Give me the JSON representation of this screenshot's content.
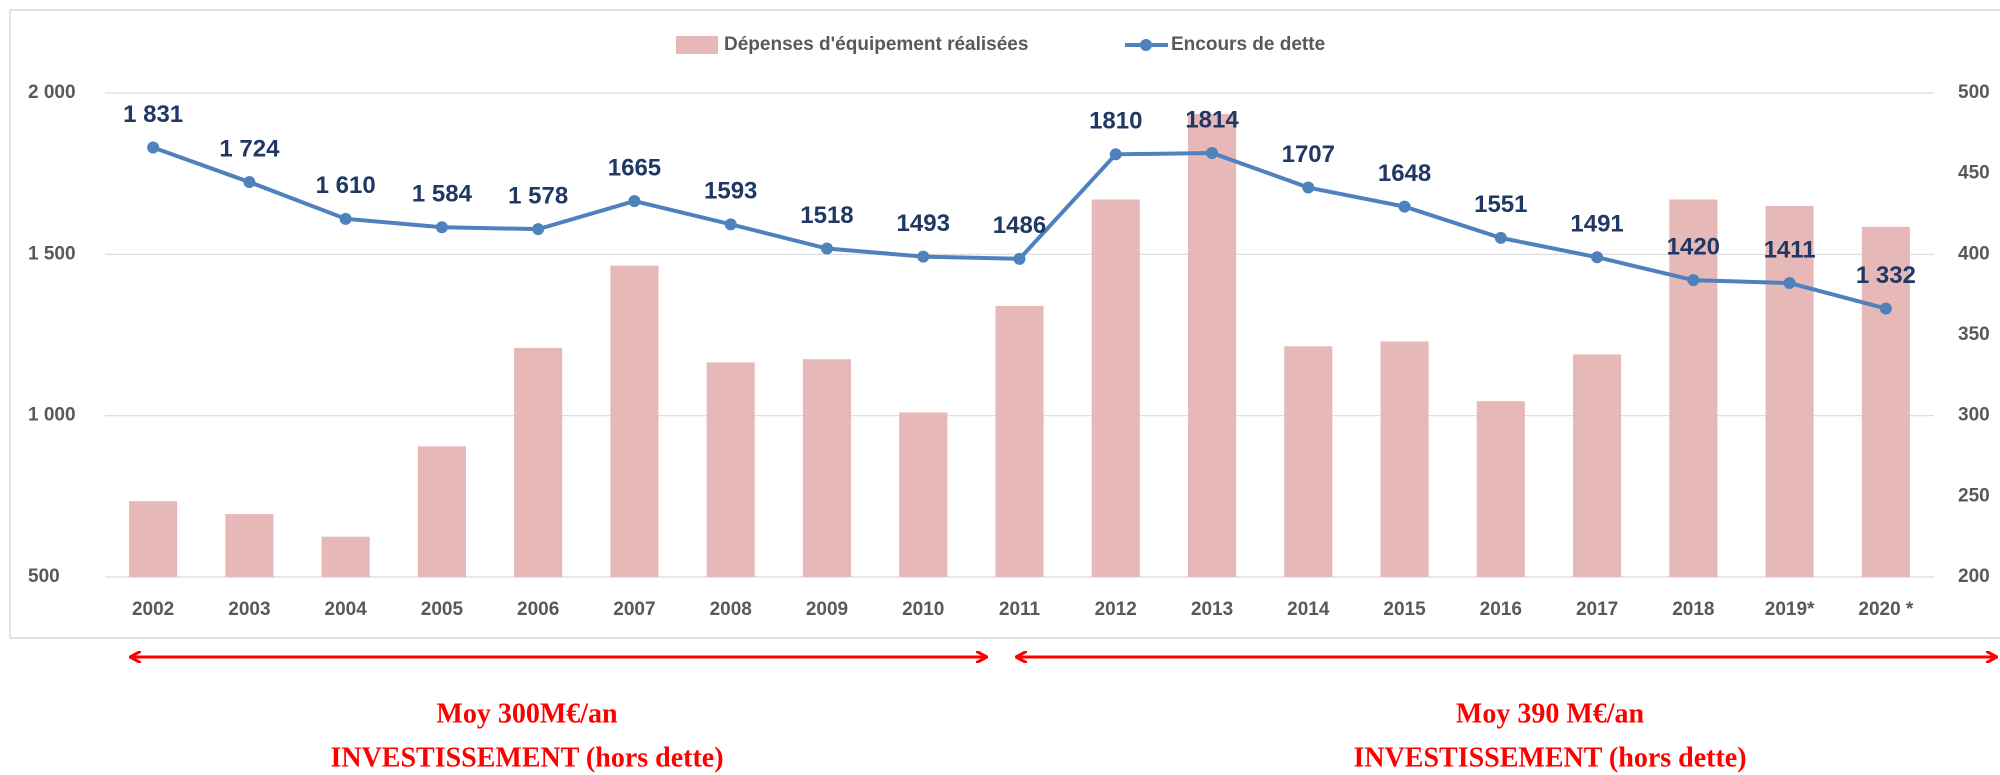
{
  "chart_data": {
    "type": "bar_line",
    "categories": [
      "2002",
      "2003",
      "2004",
      "2005",
      "2006",
      "2007",
      "2008",
      "2009",
      "2010",
      "2011",
      "2012",
      "2013",
      "2014",
      "2015",
      "2016",
      "2017",
      "2018",
      "2019*",
      "2020 *"
    ],
    "series": [
      {
        "name": "Dépenses d'équipement réalisées",
        "type": "bar",
        "axis": "y2",
        "color": "#e6b9b8",
        "values": [
          247,
          239,
          225,
          281,
          342,
          393,
          333,
          335,
          302,
          368,
          434,
          487,
          343,
          346,
          309,
          338,
          434,
          430,
          417
        ]
      },
      {
        "name": "Encours de dette",
        "type": "line",
        "axis": "y",
        "color": "#4f81bd",
        "values": [
          1831,
          1724,
          1610,
          1584,
          1578,
          1665,
          1593,
          1518,
          1493,
          1486,
          1810,
          1814,
          1707,
          1648,
          1551,
          1491,
          1420,
          1411,
          1332
        ],
        "value_labels": [
          "1 831",
          "1 724",
          "1 610",
          "1 584",
          "1 578",
          "1665",
          "1593",
          "1518",
          "1493",
          "1486",
          "1810",
          "1814",
          "1707",
          "1648",
          "1551",
          "1491",
          "1420",
          "1411",
          "1 332"
        ]
      }
    ],
    "ylim": [
      500,
      2000
    ],
    "yticks": [
      {
        "value": 500,
        "label": "500"
      },
      {
        "value": 1000,
        "label": "1 000"
      },
      {
        "value": 1500,
        "label": "1 500"
      },
      {
        "value": 2000,
        "label": "2 000"
      }
    ],
    "y2lim": [
      200,
      500
    ],
    "y2ticks": [
      200,
      250,
      300,
      350,
      400,
      450,
      500
    ],
    "grid": true,
    "legend": "top",
    "annotations": [
      "Moy 300M€/an",
      "INVESTISSEMENT (hors dette)",
      "Moy 390 M€/an",
      "INVESTISSEMENT (hors dette)"
    ]
  }
}
